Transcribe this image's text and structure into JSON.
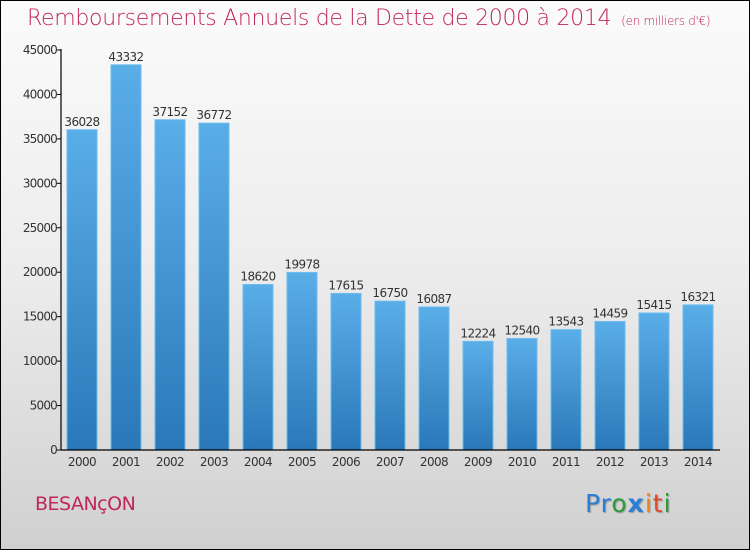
{
  "header": {
    "title": "Remboursements Annuels de la Dette de 2000 à 2014",
    "unit": "(en milliers d'€)"
  },
  "footer": {
    "city": "BESANçON",
    "logo": {
      "letters": [
        {
          "ch": "P",
          "color": "#2a7fd4"
        },
        {
          "ch": "r",
          "color": "#2a7fd4"
        },
        {
          "ch": "o",
          "color": "#2e9b3a"
        },
        {
          "ch": "x",
          "color": "#2a7fd4"
        },
        {
          "ch": "i",
          "color": "#f08020"
        },
        {
          "ch": "t",
          "color": "#e04a2a"
        },
        {
          "ch": "i",
          "color": "#2e9b3a"
        }
      ]
    }
  },
  "colors": {
    "title": "#c0265a",
    "bar_top": "#5aaee8",
    "bar_bottom": "#2a78b8",
    "axis": "#000000",
    "label": "#333333"
  },
  "chart_data": {
    "type": "bar",
    "title": "Remboursements Annuels de la Dette de 2000 à 2014",
    "subtitle": "(en milliers d'€)",
    "xlabel": "",
    "ylabel": "",
    "categories": [
      "2000",
      "2001",
      "2002",
      "2003",
      "2004",
      "2005",
      "2006",
      "2007",
      "2008",
      "2009",
      "2010",
      "2011",
      "2012",
      "2013",
      "2014"
    ],
    "values": [
      36028,
      43332,
      37152,
      36772,
      18620,
      19978,
      17615,
      16750,
      16087,
      12224,
      12540,
      13543,
      14459,
      15415,
      16321
    ],
    "ylim": [
      0,
      45000
    ],
    "yticks": [
      0,
      5000,
      10000,
      15000,
      20000,
      25000,
      30000,
      35000,
      40000,
      45000
    ],
    "grid": false,
    "legend": "none",
    "data_labels": true
  }
}
